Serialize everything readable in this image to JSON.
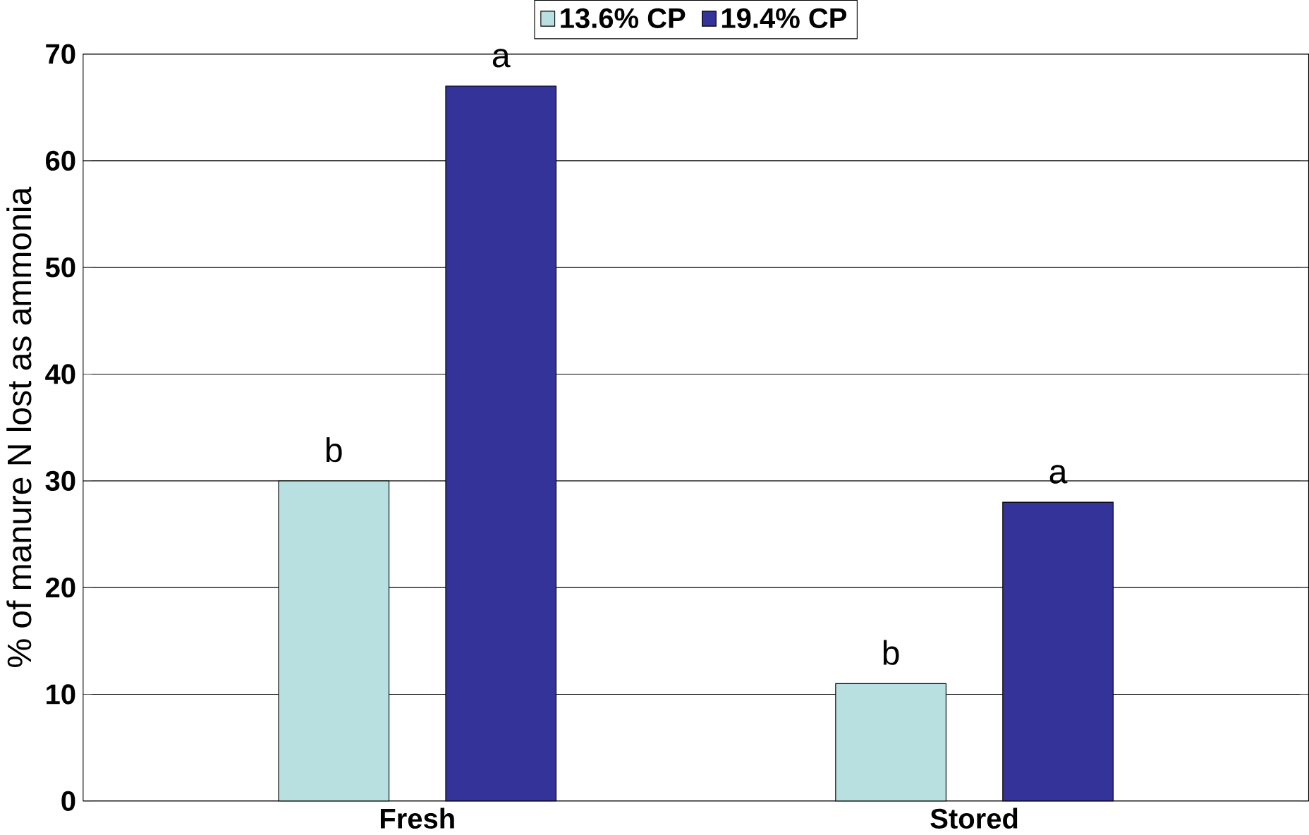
{
  "chart_data": {
    "type": "bar",
    "ylabel": "% of manure N lost as ammonia",
    "categories": [
      "Fresh",
      "Stored"
    ],
    "series": [
      {
        "name": "13.6% CP",
        "color": "#b8e0e0",
        "values": [
          30,
          11
        ]
      },
      {
        "name": "19.4% CP",
        "color": "#333399",
        "values": [
          67,
          28
        ]
      }
    ],
    "ylim": [
      0,
      70
    ],
    "yticks": [
      0,
      10,
      20,
      30,
      40,
      50,
      60,
      70
    ],
    "grid": "y",
    "legend": "top",
    "annotations": [
      "b",
      "a",
      "b",
      "a"
    ]
  }
}
